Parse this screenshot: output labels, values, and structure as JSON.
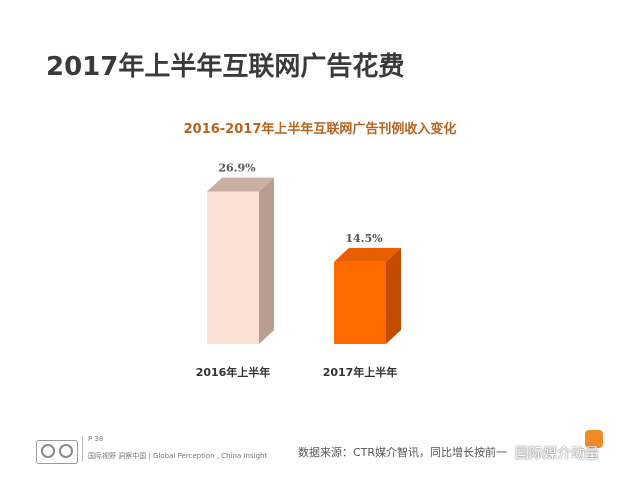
{
  "header": {
    "title": "2017年上半年互联网广告花费"
  },
  "chart_data": {
    "type": "bar",
    "title": "2016-2017年上半年互联网广告刊例收入变化",
    "categories": [
      "2016年上半年",
      "2017年上半年"
    ],
    "values": [
      26.9,
      14.5
    ],
    "value_labels": [
      "26.9%",
      "14.5%"
    ],
    "unit": "%",
    "ylim": [
      0,
      30
    ],
    "grid": false,
    "legend": "none",
    "colors": [
      "#fbe1d2",
      "#ff6a00"
    ],
    "side_colors": [
      "#b89d90",
      "#c24d00"
    ],
    "top_colors": [
      "#c9b0a3",
      "#e85f00"
    ]
  },
  "footer": {
    "page_number": "P 38",
    "slogan": "国际视野  洞察中国  |  Global Perception , China  Insight",
    "source": "数据来源：CTR媒介智讯，同比增长按前一",
    "watermark": "国际媒介动量"
  }
}
